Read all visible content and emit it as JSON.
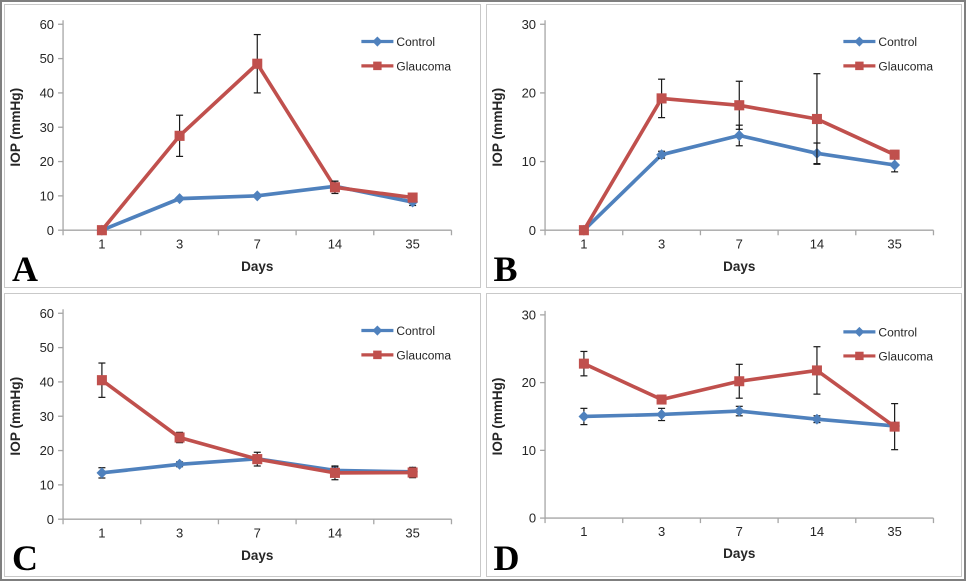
{
  "figure": {
    "theme": {
      "control_color": "#4F81BD",
      "glaucoma_color": "#C0504D",
      "axis_color": "#A6A6A6",
      "text_color": "#262626",
      "error_bar_color": "#1a1a1a",
      "panel_border_color": "#c9c9c9",
      "outer_border_color": "#7f7f7f",
      "background": "#ffffff"
    }
  },
  "chart_data": [
    {
      "type": "line",
      "panel": "A",
      "xlabel": "Days",
      "ylabel": "IOP (mmHg)",
      "categories": [
        "1",
        "3",
        "7",
        "14",
        "35"
      ],
      "ylim": [
        0,
        60
      ],
      "ytick_step": 10,
      "grid": false,
      "legend_position": "top-right",
      "legend": [
        "Control",
        "Glaucoma"
      ],
      "series": [
        {
          "name": "Control",
          "color": "#4F81BD",
          "marker": "diamond",
          "values": [
            0,
            9.2,
            10,
            12.8,
            8.2
          ],
          "errors": [
            0,
            0,
            0,
            1.5,
            1
          ]
        },
        {
          "name": "Glaucoma",
          "color": "#C0504D",
          "marker": "square",
          "values": [
            0,
            27.5,
            48.5,
            12.5,
            9.5
          ],
          "errors": [
            0,
            6,
            8.5,
            1.8,
            0.8
          ]
        }
      ]
    },
    {
      "type": "line",
      "panel": "B",
      "xlabel": "Days",
      "ylabel": "IOP (mmHg)",
      "categories": [
        "1",
        "3",
        "7",
        "14",
        "35"
      ],
      "ylim": [
        0,
        30
      ],
      "ytick_step": 10,
      "grid": false,
      "legend_position": "top-right",
      "legend": [
        "Control",
        "Glaucoma"
      ],
      "series": [
        {
          "name": "Control",
          "color": "#4F81BD",
          "marker": "diamond",
          "values": [
            0,
            11,
            13.8,
            11.2,
            9.5
          ],
          "errors": [
            0,
            0.5,
            1.5,
            1.5,
            1
          ]
        },
        {
          "name": "Glaucoma",
          "color": "#C0504D",
          "marker": "square",
          "values": [
            0,
            19.2,
            18.2,
            16.2,
            11
          ],
          "errors": [
            0,
            2.8,
            3.5,
            6.6,
            0.6
          ]
        }
      ]
    },
    {
      "type": "line",
      "panel": "C",
      "xlabel": "Days",
      "ylabel": "IOP (mmHg)",
      "categories": [
        "1",
        "3",
        "7",
        "14",
        "35"
      ],
      "ylim": [
        0,
        60
      ],
      "ytick_step": 10,
      "grid": false,
      "legend_position": "top-right",
      "legend": [
        "Control",
        "Glaucoma"
      ],
      "series": [
        {
          "name": "Control",
          "color": "#4F81BD",
          "marker": "diamond",
          "values": [
            13.5,
            16,
            17.6,
            14.2,
            13.8
          ],
          "errors": [
            1.5,
            0.7,
            0.5,
            1,
            0.5
          ]
        },
        {
          "name": "Glaucoma",
          "color": "#C0504D",
          "marker": "square",
          "values": [
            40.5,
            23.8,
            17.5,
            13.5,
            13.6
          ],
          "errors": [
            5,
            1.5,
            2,
            2,
            1.5
          ]
        }
      ]
    },
    {
      "type": "line",
      "panel": "D",
      "xlabel": "Days",
      "ylabel": "IOP (mmHg)",
      "categories": [
        "1",
        "3",
        "7",
        "14",
        "35"
      ],
      "ylim": [
        0,
        30
      ],
      "ytick_step": 10,
      "grid": false,
      "legend_position": "top-right",
      "legend": [
        "Control",
        "Glaucoma"
      ],
      "series": [
        {
          "name": "Control",
          "color": "#4F81BD",
          "marker": "diamond",
          "values": [
            15,
            15.3,
            15.8,
            14.6,
            13.6
          ],
          "errors": [
            1.2,
            0.9,
            0.7,
            0.5,
            0
          ]
        },
        {
          "name": "Glaucoma",
          "color": "#C0504D",
          "marker": "square",
          "values": [
            22.8,
            17.5,
            20.2,
            21.8,
            13.5
          ],
          "errors": [
            1.8,
            0.6,
            2.5,
            3.5,
            3.4
          ]
        }
      ]
    }
  ]
}
